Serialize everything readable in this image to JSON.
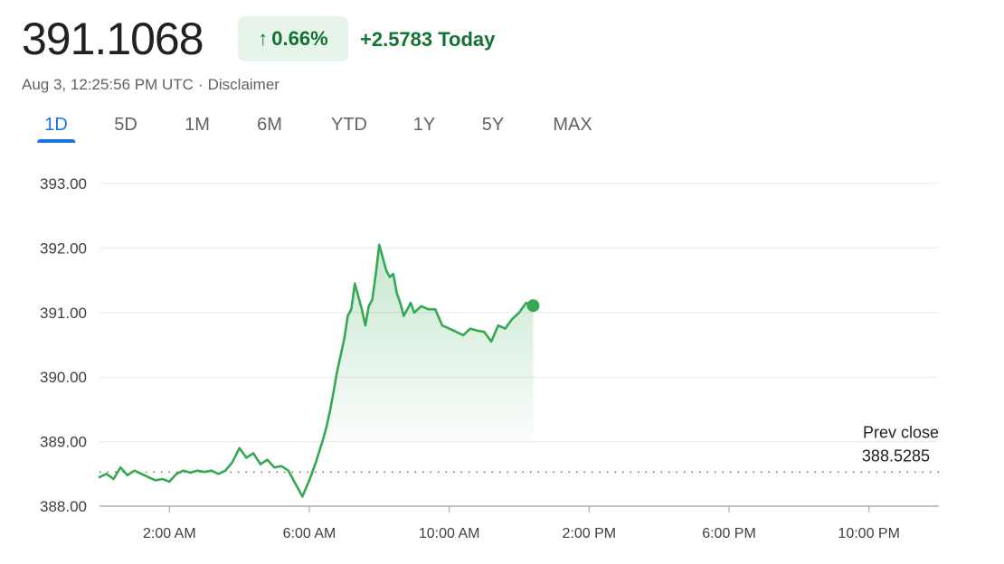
{
  "quote": {
    "price": "391.1068",
    "change_pct": "0.66%",
    "change_today": "+2.5783 Today",
    "timestamp": "Aug 3, 12:25:56 PM UTC",
    "separator": "·",
    "disclaimer": "Disclaimer",
    "direction_icon": "arrow-up-icon"
  },
  "range_tabs": [
    {
      "label": "1D",
      "active": true
    },
    {
      "label": "5D",
      "active": false
    },
    {
      "label": "1M",
      "active": false
    },
    {
      "label": "6M",
      "active": false
    },
    {
      "label": "YTD",
      "active": false
    },
    {
      "label": "1Y",
      "active": false
    },
    {
      "label": "5Y",
      "active": false
    },
    {
      "label": "MAX",
      "active": false
    }
  ],
  "colors": {
    "up_green": "#137333",
    "line_green": "#34a853",
    "pill_bg": "#e6f4ea",
    "tab_active": "#1a73e8",
    "gridline": "#e8eaed"
  },
  "chart_data": {
    "type": "line",
    "x_unit": "hour of day (UTC)",
    "xlim": [
      0,
      24
    ],
    "ylim": [
      388,
      393
    ],
    "y_ticks": [
      "393.00",
      "392.00",
      "391.00",
      "390.00",
      "389.00",
      "388.00"
    ],
    "y_tick_values": [
      393,
      392,
      391,
      390,
      389,
      388
    ],
    "x_tick_labels": [
      "2:00 AM",
      "6:00 AM",
      "10:00 AM",
      "2:00 PM",
      "6:00 PM",
      "10:00 PM"
    ],
    "x_tick_values": [
      2,
      6,
      10,
      14,
      18,
      22
    ],
    "grid": true,
    "prev_close": {
      "label": "Prev close",
      "value": "388.5285",
      "y": 388.5285
    },
    "series": [
      {
        "x": [
          0.0,
          0.2,
          0.4,
          0.6,
          0.8,
          1.0,
          1.2,
          1.4,
          1.6,
          1.8,
          2.0,
          2.2,
          2.4,
          2.6,
          2.8,
          3.0,
          3.2,
          3.4,
          3.6,
          3.8,
          4.0,
          4.2,
          4.4,
          4.6,
          4.8,
          5.0,
          5.2,
          5.4,
          5.6,
          5.8,
          6.0,
          6.2,
          6.4,
          6.5,
          6.6,
          6.7,
          6.8,
          6.9,
          7.0,
          7.1,
          7.2,
          7.3,
          7.4,
          7.5,
          7.6,
          7.7,
          7.8,
          7.9,
          8.0,
          8.1,
          8.2,
          8.3,
          8.4,
          8.5,
          8.6,
          8.7,
          8.8,
          8.9,
          9.0,
          9.2,
          9.4,
          9.6,
          9.8,
          10.0,
          10.2,
          10.4,
          10.6,
          10.8,
          11.0,
          11.2,
          11.4,
          11.6,
          11.8,
          12.0,
          12.2,
          12.4
        ],
        "y": [
          388.45,
          388.5,
          388.42,
          388.6,
          388.48,
          388.55,
          388.5,
          388.45,
          388.4,
          388.42,
          388.38,
          388.5,
          388.55,
          388.52,
          388.55,
          388.53,
          388.55,
          388.5,
          388.55,
          388.68,
          388.9,
          388.75,
          388.82,
          388.65,
          388.72,
          388.6,
          388.62,
          388.55,
          388.35,
          388.15,
          388.4,
          388.7,
          389.05,
          389.25,
          389.5,
          389.8,
          390.1,
          390.35,
          390.6,
          390.95,
          391.05,
          391.45,
          391.25,
          391.05,
          390.8,
          391.1,
          391.2,
          391.6,
          392.05,
          391.85,
          391.65,
          391.55,
          391.6,
          391.3,
          391.15,
          390.95,
          391.05,
          391.15,
          391.0,
          391.1,
          391.05,
          391.05,
          390.8,
          390.75,
          390.7,
          390.65,
          390.75,
          390.72,
          390.7,
          390.55,
          390.8,
          390.75,
          390.9,
          391.0,
          391.15,
          391.1068
        ]
      }
    ]
  }
}
